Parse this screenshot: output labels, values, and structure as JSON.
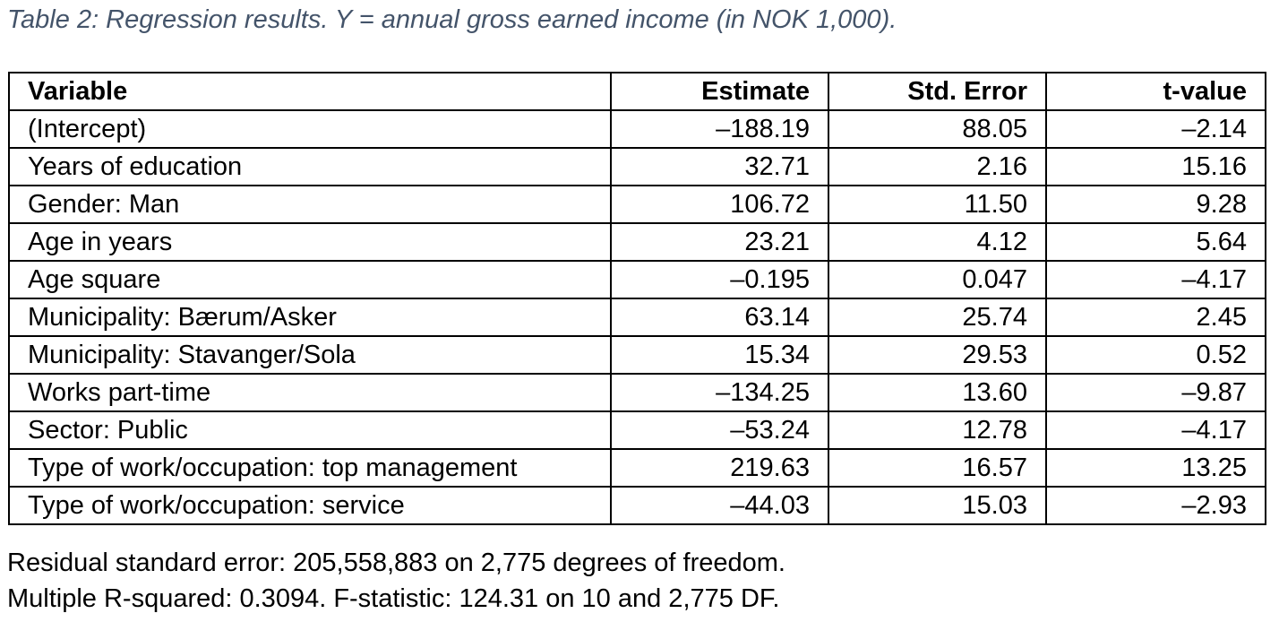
{
  "caption": "Table 2: Regression results. Y = annual gross earned income (in NOK 1,000).",
  "table": {
    "headers": [
      "Variable",
      "Estimate",
      "Std. Error",
      "t-value"
    ],
    "rows": [
      [
        "(Intercept)",
        "–188.19",
        "88.05",
        "–2.14"
      ],
      [
        "Years of education",
        "32.71",
        "2.16",
        "15.16"
      ],
      [
        "Gender: Man",
        "106.72",
        "11.50",
        "9.28"
      ],
      [
        "Age in years",
        "23.21",
        "4.12",
        "5.64"
      ],
      [
        "Age square",
        "–0.195",
        "0.047",
        "–4.17"
      ],
      [
        "Municipality: Bærum/Asker",
        "63.14",
        "25.74",
        "2.45"
      ],
      [
        "Municipality: Stavanger/Sola",
        "15.34",
        "29.53",
        "0.52"
      ],
      [
        "Works part-time",
        "–134.25",
        "13.60",
        "–9.87"
      ],
      [
        "Sector: Public",
        "–53.24",
        "12.78",
        "–4.17"
      ],
      [
        "Type of work/occupation: top management",
        "219.63",
        "16.57",
        "13.25"
      ],
      [
        "Type of work/occupation: service",
        "–44.03",
        "15.03",
        "–2.93"
      ]
    ]
  },
  "footer": {
    "line1": "Residual standard error: 205,558,883 on 2,775 degrees of freedom.",
    "line2": "Multiple R-squared: 0.3094. F-statistic: 124.31 on 10 and 2,775 DF."
  },
  "colors": {
    "caption": "#44546a",
    "text": "#000000",
    "border": "#000000"
  }
}
